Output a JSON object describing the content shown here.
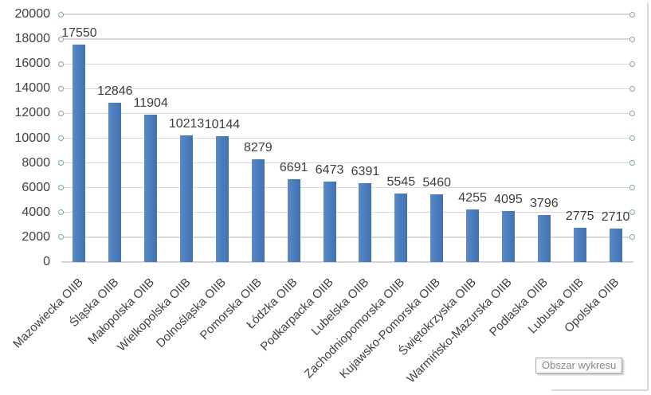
{
  "window": {
    "tooltip_label": "Obszar wykresu"
  },
  "chart_data": {
    "type": "bar",
    "title": "",
    "xlabel": "",
    "ylabel": "",
    "categories": [
      "Mazowiecka OIIB",
      "Śląska OIIB",
      "Małopolska OIIB",
      "Wielkopolska OIIB",
      "Dolnośląska OIIB",
      "Pomorska OIIB",
      "Łódzka OIIB",
      "Podkarpacka OIIB",
      "Lubelska OIIB",
      "Zachodniopomorska OIIB",
      "Kujawsko-Pomorska OIIB",
      "Świętokrzyska OIIB",
      "Warmińsko-Mazurska OIIB",
      "Podlaska OIIB",
      "Lubuska OIIB",
      "Opolska OIIB"
    ],
    "values": [
      17550,
      12846,
      11904,
      10213,
      10144,
      8279,
      6691,
      6473,
      6391,
      5545,
      5460,
      4255,
      4095,
      3796,
      2775,
      2710
    ],
    "ylim": [
      0,
      20000
    ],
    "yticks": [
      0,
      2000,
      4000,
      6000,
      8000,
      10000,
      12000,
      14000,
      16000,
      18000,
      20000
    ],
    "grid": true,
    "legend": null,
    "data_labels_shown": true,
    "category_label_rotation_deg": -45,
    "bar_color": "#4d7ebf",
    "gridline_color": "#dadada",
    "axis_line_color": "#d4d4d4",
    "text_color": "#404040",
    "gridlines_selected": true,
    "selection_handle_color": "#7fa3b6"
  }
}
